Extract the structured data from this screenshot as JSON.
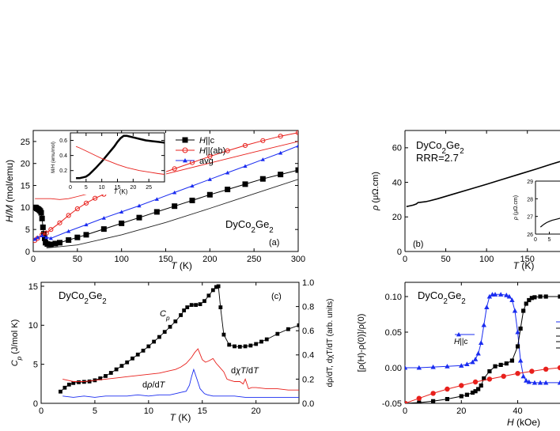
{
  "colors": {
    "black": "#000000",
    "red": "#e8201c",
    "blue": "#1a2cf0",
    "thin": "#222222"
  },
  "chart_data": [
    {
      "id": "a",
      "type": "line",
      "title": "",
      "panel_label": "(a)",
      "compound": {
        "base": "DyCo",
        "sub1": "2",
        "mid": "Ge",
        "sub2": "2"
      },
      "xlabel": {
        "italic": "T",
        "unit": " (K)"
      },
      "ylabel": {
        "italic": "H/M",
        "unit": " (mol/emu)"
      },
      "xlim": [
        0,
        300
      ],
      "ylim": [
        0,
        27.5
      ],
      "xticks": [
        0,
        50,
        100,
        150,
        200,
        250,
        300
      ],
      "yticks": [
        0,
        5,
        10,
        15,
        20,
        25
      ],
      "legend_position": "top-right",
      "legend": [
        {
          "label_italic": "H",
          "label_rest": "||c",
          "marker": "square",
          "color": "black"
        },
        {
          "label_italic": "H",
          "label_rest": "||(ab)",
          "marker": "circle-open",
          "color": "red"
        },
        {
          "label_italic": "",
          "label_rest": "avg",
          "marker": "triangle",
          "color": "blue"
        }
      ],
      "series": [
        {
          "name": "H||c",
          "color": "black",
          "marker": "square",
          "x": [
            1.8,
            3,
            4,
            5,
            6,
            7,
            8,
            9,
            10,
            11,
            12,
            13,
            14,
            16,
            18,
            20,
            25,
            30,
            40,
            50,
            60,
            80,
            100,
            120,
            140,
            160,
            180,
            200,
            220,
            240,
            260,
            280,
            300
          ],
          "y": [
            10,
            10,
            9.8,
            9.7,
            9.6,
            9.4,
            9.2,
            8.8,
            7.5,
            5.5,
            4,
            3,
            2,
            1.7,
            1.6,
            1.6,
            1.8,
            2,
            2.6,
            3.2,
            3.8,
            5.1,
            6.4,
            7.7,
            9,
            10.3,
            11.6,
            12.9,
            14.1,
            15.3,
            16.5,
            17.5,
            18.5
          ]
        },
        {
          "name": "H||(ab)",
          "color": "red",
          "marker": "circle-open",
          "x": [
            1.8,
            5,
            10,
            15,
            20,
            30,
            40,
            50,
            60,
            70,
            80,
            90,
            100,
            120,
            140,
            160,
            180,
            200,
            220,
            240,
            260,
            280,
            300
          ],
          "y": [
            2.5,
            3,
            3.8,
            4.2,
            5,
            6.5,
            8.2,
            9.7,
            11,
            12.1,
            13,
            13.8,
            14.5,
            16,
            17.4,
            18.8,
            20.2,
            21.6,
            22.9,
            24.1,
            25.2,
            26.2,
            27
          ]
        },
        {
          "name": "avg",
          "color": "blue",
          "marker": "triangle",
          "x": [
            1.8,
            5,
            10,
            15,
            20,
            40,
            60,
            80,
            100,
            120,
            140,
            160,
            180,
            200,
            220,
            240,
            260,
            280,
            300
          ],
          "y": [
            2.8,
            3.2,
            3.6,
            3.2,
            3,
            4.6,
            6.1,
            7.6,
            9,
            10.4,
            11.9,
            13.4,
            14.9,
            16.4,
            17.9,
            19.4,
            20.9,
            22.4,
            24
          ]
        },
        {
          "name": "red-thin-line",
          "color": "red",
          "marker": "none",
          "x": [
            2,
            20,
            30,
            40,
            50,
            60,
            70,
            80,
            100,
            150,
            200,
            250,
            300
          ],
          "y": [
            12,
            12,
            11.8,
            12,
            12.5,
            13,
            13.6,
            14.1,
            15.1,
            17.6,
            20.1,
            22.6,
            25
          ]
        },
        {
          "name": "black-thin-line",
          "color": "thin",
          "marker": "none",
          "x": [
            15,
            20,
            30,
            50,
            100,
            150,
            200,
            250,
            300
          ],
          "y": [
            0.8,
            0.9,
            1.1,
            1.5,
            3.8,
            6.6,
            9.8,
            13.1,
            16.4
          ]
        }
      ],
      "inset": {
        "xlabel": {
          "italic": "T",
          "unit": " (K)"
        },
        "ylabel": "M/H (emu/mol)",
        "xlim": [
          0,
          30
        ],
        "ylim": [
          0.05,
          0.7
        ],
        "xticks": [
          0,
          5,
          10,
          15,
          20,
          25
        ],
        "yticks": [
          0.2,
          0.4,
          0.6
        ],
        "ytick_labels": [
          "0.2",
          "0.4",
          "0.6"
        ],
        "series": [
          {
            "name": "c-axis",
            "color": "black",
            "marker": "square",
            "x": [
              1.8,
              3,
              4,
              5,
              6,
              7,
              8,
              10,
              12,
              14,
              15,
              16,
              17,
              18,
              20,
              22,
              24,
              26,
              28,
              30
            ],
            "y": [
              0.1,
              0.1,
              0.11,
              0.12,
              0.15,
              0.19,
              0.23,
              0.32,
              0.42,
              0.52,
              0.58,
              0.63,
              0.66,
              0.66,
              0.64,
              0.62,
              0.6,
              0.59,
              0.58,
              0.57
            ]
          },
          {
            "name": "ab-plane",
            "color": "red",
            "marker": "circle-open",
            "x": [
              1.8,
              3,
              5,
              8,
              10,
              12,
              15,
              18,
              20,
              22,
              25,
              28,
              30
            ],
            "y": [
              0.52,
              0.5,
              0.46,
              0.4,
              0.36,
              0.33,
              0.28,
              0.24,
              0.22,
              0.2,
              0.18,
              0.16,
              0.15
            ]
          }
        ]
      }
    },
    {
      "id": "b",
      "type": "line",
      "title": "",
      "panel_label": "(b)",
      "compound": {
        "base": "DyCo",
        "sub1": "2",
        "mid": "Ge",
        "sub2": "2"
      },
      "rrr": "RRR=2.7",
      "xlabel": {
        "italic": "T",
        "unit": " (K)"
      },
      "ylabel": {
        "italic": "ρ",
        "unit": " (μΩ.cm)"
      },
      "xlim": [
        0,
        190
      ],
      "ylim": [
        0,
        70
      ],
      "xticks": [
        0,
        50,
        100,
        150
      ],
      "yticks": [
        0,
        20,
        40,
        60
      ],
      "series": [
        {
          "name": "rho",
          "color": "black",
          "x": [
            1.8,
            5,
            10,
            14,
            16,
            18,
            20,
            25,
            30,
            40,
            60,
            80,
            100,
            120,
            140,
            160,
            180,
            190
          ],
          "y": [
            26,
            26.3,
            26.8,
            27.5,
            28.3,
            28.4,
            28.5,
            28.8,
            29.3,
            30.5,
            33.3,
            36.1,
            38.9,
            41.8,
            44.7,
            47.6,
            50.6,
            52
          ]
        }
      ],
      "inset": {
        "ylabel": {
          "italic": "ρ",
          "unit": " (μΩ.cm)"
        },
        "xlim": [
          0,
          10
        ],
        "ylim": [
          26,
          29
        ],
        "xticks": [
          0,
          5
        ],
        "yticks": [
          26,
          27,
          28,
          29
        ],
        "series": [
          {
            "name": "rho-low",
            "color": "black",
            "x": [
              1.8,
              3,
              4,
              5,
              6,
              7,
              8,
              9,
              10
            ],
            "y": [
              26.4,
              26.55,
              26.65,
              26.72,
              26.78,
              26.82,
              26.86,
              26.9,
              26.93
            ]
          }
        ]
      }
    },
    {
      "id": "c",
      "type": "line",
      "title": "",
      "panel_label": "(c)",
      "compound": {
        "base": "DyCo",
        "sub1": "2",
        "mid": "Ge",
        "sub2": "2"
      },
      "xlabel": {
        "italic": "T",
        "unit": " (K)"
      },
      "ylabel": {
        "italic": "C",
        "sub": "p",
        "unit": " (J/mol K)"
      },
      "ylabel_right": "dρ/dT, dχT/dT (arb. units)",
      "xlim": [
        0,
        24
      ],
      "ylim": [
        0,
        15.5
      ],
      "ylim_right": [
        0,
        1.0
      ],
      "xticks": [
        0,
        5,
        10,
        15,
        20
      ],
      "yticks": [
        0,
        5,
        10,
        15
      ],
      "yticks_right": [
        0,
        0.2,
        0.4,
        0.6,
        0.8,
        1.0
      ],
      "ytick_labels_right": [
        "0.0",
        "0.2",
        "0.4",
        "0.6",
        "0.8",
        "1.0"
      ],
      "annotations": {
        "cp": {
          "italic": "C",
          "sub": "p"
        },
        "dchi": {
          "pre": "d",
          "italic": "χ",
          "mid": "T",
          "post": "/d",
          "end": "T"
        },
        "drho": {
          "pre": "d",
          "italic": "ρ",
          "post": "/d",
          "end": "T"
        }
      },
      "series": [
        {
          "name": "Cp",
          "color": "black",
          "marker": "square",
          "axis": "left",
          "x": [
            1.8,
            2.2,
            2.6,
            3,
            3.5,
            4,
            4.5,
            5,
            5.5,
            6,
            6.5,
            7,
            7.5,
            8,
            8.5,
            9,
            9.5,
            10,
            10.5,
            11,
            11.5,
            12,
            12.5,
            13,
            13.3,
            13.6,
            14,
            14.4,
            14.8,
            15.2,
            15.6,
            16,
            16.3,
            16.5,
            16.7,
            17,
            17.5,
            18,
            18.5,
            19,
            19.5,
            20,
            20.5,
            21,
            22,
            23,
            24
          ],
          "y": [
            1.5,
            2,
            2.4,
            2.6,
            2.7,
            2.75,
            2.8,
            2.95,
            3.2,
            3.5,
            3.9,
            4.35,
            4.8,
            5.25,
            5.75,
            6.25,
            6.75,
            7.3,
            7.9,
            8.5,
            9.15,
            9.8,
            10.5,
            11.3,
            11.9,
            12.3,
            12.6,
            12.6,
            12.7,
            13.1,
            13.8,
            14.5,
            14.9,
            15,
            12.3,
            8.8,
            7.5,
            7.3,
            7.25,
            7.3,
            7.4,
            7.6,
            7.9,
            8.2,
            8.9,
            9.5,
            10
          ]
        },
        {
          "name": "dchiT/dT",
          "color": "red",
          "marker": "none",
          "axis": "right",
          "x": [
            2,
            3,
            4,
            5,
            6,
            7,
            8,
            9,
            10,
            11,
            12,
            12.5,
            13,
            13.5,
            14,
            14.3,
            14.6,
            15,
            15.3,
            15.6,
            16,
            16.3,
            16.6,
            17,
            17.3,
            17.6,
            18,
            18.5,
            18.8,
            19,
            19.3,
            19.6,
            20,
            21,
            22,
            23,
            24
          ],
          "y": [
            0.2,
            0.18,
            0.18,
            0.19,
            0.2,
            0.21,
            0.22,
            0.23,
            0.24,
            0.25,
            0.27,
            0.28,
            0.3,
            0.33,
            0.38,
            0.42,
            0.45,
            0.36,
            0.34,
            0.35,
            0.37,
            0.33,
            0.3,
            0.26,
            0.2,
            0.19,
            0.18,
            0.18,
            0.16,
            0.2,
            0.12,
            0.13,
            0.13,
            0.12,
            0.12,
            0.11,
            0.11
          ]
        },
        {
          "name": "drho/dT",
          "color": "blue",
          "marker": "none",
          "axis": "right",
          "x": [
            2,
            3,
            4,
            5,
            6,
            7,
            8,
            9,
            10,
            11,
            12,
            12.5,
            13,
            13.5,
            13.8,
            14,
            14.2,
            14.5,
            14.8,
            15.2,
            15.5,
            16,
            17,
            18,
            19,
            20,
            21,
            22,
            23,
            24
          ],
          "y": [
            0.06,
            0.05,
            0.06,
            0.05,
            0.06,
            0.06,
            0.06,
            0.07,
            0.06,
            0.07,
            0.07,
            0.08,
            0.09,
            0.1,
            0.15,
            0.22,
            0.28,
            0.2,
            0.12,
            0.08,
            0.07,
            0.06,
            0.06,
            0.06,
            0.05,
            0.05,
            0.05,
            0.05,
            0.05,
            0.05
          ]
        }
      ]
    },
    {
      "id": "d",
      "type": "line",
      "title": "",
      "compound": {
        "base": "DyCo",
        "sub1": "2",
        "mid": "Ge",
        "sub2": "2"
      },
      "legend_entry": {
        "italic": "H",
        "rest": "||c"
      },
      "xlabel": {
        "italic": "H",
        "unit": " (kOe)"
      },
      "ylabel": "[ρ(H)-ρ(0)]/ρ(0)",
      "xlim": [
        0,
        55
      ],
      "ylim": [
        -0.05,
        0.12
      ],
      "xticks": [
        0,
        20,
        40
      ],
      "yticks": [
        -0.05,
        0,
        0.05,
        0.1
      ],
      "ytick_labels": [
        "-0.05",
        "0.00",
        "0.05",
        "0.10"
      ],
      "series": [
        {
          "name": "blue",
          "color": "blue",
          "marker": "triangle",
          "x": [
            0,
            5,
            10,
            15,
            20,
            22,
            24,
            25,
            26,
            27,
            28,
            29,
            30,
            31,
            32,
            34,
            36,
            37,
            38,
            39,
            40,
            41,
            42,
            43,
            44,
            46,
            48,
            50,
            55
          ],
          "y": [
            0,
            0,
            0.001,
            0.002,
            0.003,
            0.005,
            0.008,
            0.012,
            0.02,
            0.035,
            0.06,
            0.085,
            0.1,
            0.103,
            0.103,
            0.103,
            0.102,
            0.1,
            0.095,
            0.08,
            0.05,
            0.01,
            -0.012,
            -0.018,
            -0.02,
            -0.021,
            -0.021,
            -0.021,
            -0.021
          ]
        },
        {
          "name": "black",
          "color": "black",
          "marker": "square",
          "x": [
            0,
            5,
            10,
            15,
            20,
            22,
            24,
            25,
            26,
            27,
            28,
            30,
            32,
            34,
            36,
            38,
            40,
            41,
            42,
            43,
            44,
            45,
            46,
            48,
            50,
            55
          ],
          "y": [
            -0.05,
            -0.049,
            -0.047,
            -0.044,
            -0.04,
            -0.038,
            -0.035,
            -0.033,
            -0.03,
            -0.025,
            -0.015,
            -0.005,
            0.002,
            0.004,
            0.006,
            0.01,
            0.03,
            0.055,
            0.08,
            0.09,
            0.095,
            0.098,
            0.099,
            0.1,
            0.1,
            0.1
          ]
        },
        {
          "name": "red",
          "color": "red",
          "marker": "circle-filled",
          "x": [
            0,
            5,
            10,
            15,
            20,
            25,
            30,
            35,
            40,
            45,
            50,
            55
          ],
          "y": [
            -0.05,
            -0.043,
            -0.036,
            -0.03,
            -0.025,
            -0.02,
            -0.016,
            -0.012,
            -0.008,
            -0.005,
            -0.002,
            0
          ]
        }
      ]
    }
  ]
}
